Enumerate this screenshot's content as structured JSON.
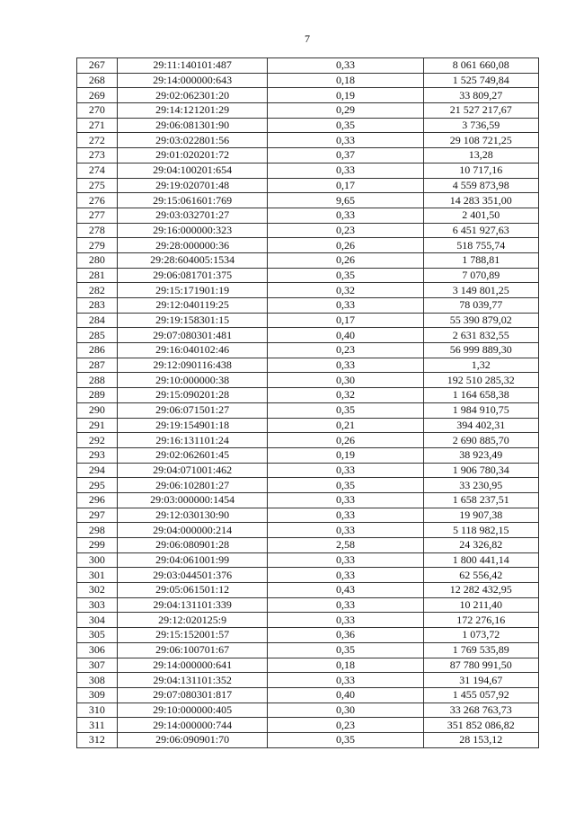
{
  "page_number": "7",
  "rows": [
    [
      "267",
      "29:11:140101:487",
      "0,33",
      "8 061 660,08"
    ],
    [
      "268",
      "29:14:000000:643",
      "0,18",
      "1 525 749,84"
    ],
    [
      "269",
      "29:02:062301:20",
      "0,19",
      "33 809,27"
    ],
    [
      "270",
      "29:14:121201:29",
      "0,29",
      "21 527 217,67"
    ],
    [
      "271",
      "29:06:081301:90",
      "0,35",
      "3 736,59"
    ],
    [
      "272",
      "29:03:022801:56",
      "0,33",
      "29 108 721,25"
    ],
    [
      "273",
      "29:01:020201:72",
      "0,37",
      "13,28"
    ],
    [
      "274",
      "29:04:100201:654",
      "0,33",
      "10 717,16"
    ],
    [
      "275",
      "29:19:020701:48",
      "0,17",
      "4 559 873,98"
    ],
    [
      "276",
      "29:15:061601:769",
      "9,65",
      "14 283 351,00"
    ],
    [
      "277",
      "29:03:032701:27",
      "0,33",
      "2 401,50"
    ],
    [
      "278",
      "29:16:000000:323",
      "0,23",
      "6 451 927,63"
    ],
    [
      "279",
      "29:28:000000:36",
      "0,26",
      "518 755,74"
    ],
    [
      "280",
      "29:28:604005:1534",
      "0,26",
      "1 788,81"
    ],
    [
      "281",
      "29:06:081701:375",
      "0,35",
      "7 070,89"
    ],
    [
      "282",
      "29:15:171901:19",
      "0,32",
      "3 149 801,25"
    ],
    [
      "283",
      "29:12:040119:25",
      "0,33",
      "78 039,77"
    ],
    [
      "284",
      "29:19:158301:15",
      "0,17",
      "55 390 879,02"
    ],
    [
      "285",
      "29:07:080301:481",
      "0,40",
      "2 631 832,55"
    ],
    [
      "286",
      "29:16:040102:46",
      "0,23",
      "56 999 889,30"
    ],
    [
      "287",
      "29:12:090116:438",
      "0,33",
      "1,32"
    ],
    [
      "288",
      "29:10:000000:38",
      "0,30",
      "192 510 285,32"
    ],
    [
      "289",
      "29:15:090201:28",
      "0,32",
      "1 164 658,38"
    ],
    [
      "290",
      "29:06:071501:27",
      "0,35",
      "1 984 910,75"
    ],
    [
      "291",
      "29:19:154901:18",
      "0,21",
      "394 402,31"
    ],
    [
      "292",
      "29:16:131101:24",
      "0,26",
      "2 690 885,70"
    ],
    [
      "293",
      "29:02:062601:45",
      "0,19",
      "38 923,49"
    ],
    [
      "294",
      "29:04:071001:462",
      "0,33",
      "1 906 780,34"
    ],
    [
      "295",
      "29:06:102801:27",
      "0,35",
      "33 230,95"
    ],
    [
      "296",
      "29:03:000000:1454",
      "0,33",
      "1 658 237,51"
    ],
    [
      "297",
      "29:12:030130:90",
      "0,33",
      "19 907,38"
    ],
    [
      "298",
      "29:04:000000:214",
      "0,33",
      "5 118 982,15"
    ],
    [
      "299",
      "29:06:080901:28",
      "2,58",
      "24 326,82"
    ],
    [
      "300",
      "29:04:061001:99",
      "0,33",
      "1 800 441,14"
    ],
    [
      "301",
      "29:03:044501:376",
      "0,33",
      "62 556,42"
    ],
    [
      "302",
      "29:05:061501:12",
      "0,43",
      "12 282 432,95"
    ],
    [
      "303",
      "29:04:131101:339",
      "0,33",
      "10 211,40"
    ],
    [
      "304",
      "29:12:020125:9",
      "0,33",
      "172 276,16"
    ],
    [
      "305",
      "29:15:152001:57",
      "0,36",
      "1 073,72"
    ],
    [
      "306",
      "29:06:100701:67",
      "0,35",
      "1 769 535,89"
    ],
    [
      "307",
      "29:14:000000:641",
      "0,18",
      "87 780 991,50"
    ],
    [
      "308",
      "29:04:131101:352",
      "0,33",
      "31 194,67"
    ],
    [
      "309",
      "29:07:080301:817",
      "0,40",
      "1 455 057,92"
    ],
    [
      "310",
      "29:10:000000:405",
      "0,30",
      "33 268 763,73"
    ],
    [
      "311",
      "29:14:000000:744",
      "0,23",
      "351 852 086,82"
    ],
    [
      "312",
      "29:06:090901:70",
      "0,35",
      "28 153,12"
    ]
  ]
}
